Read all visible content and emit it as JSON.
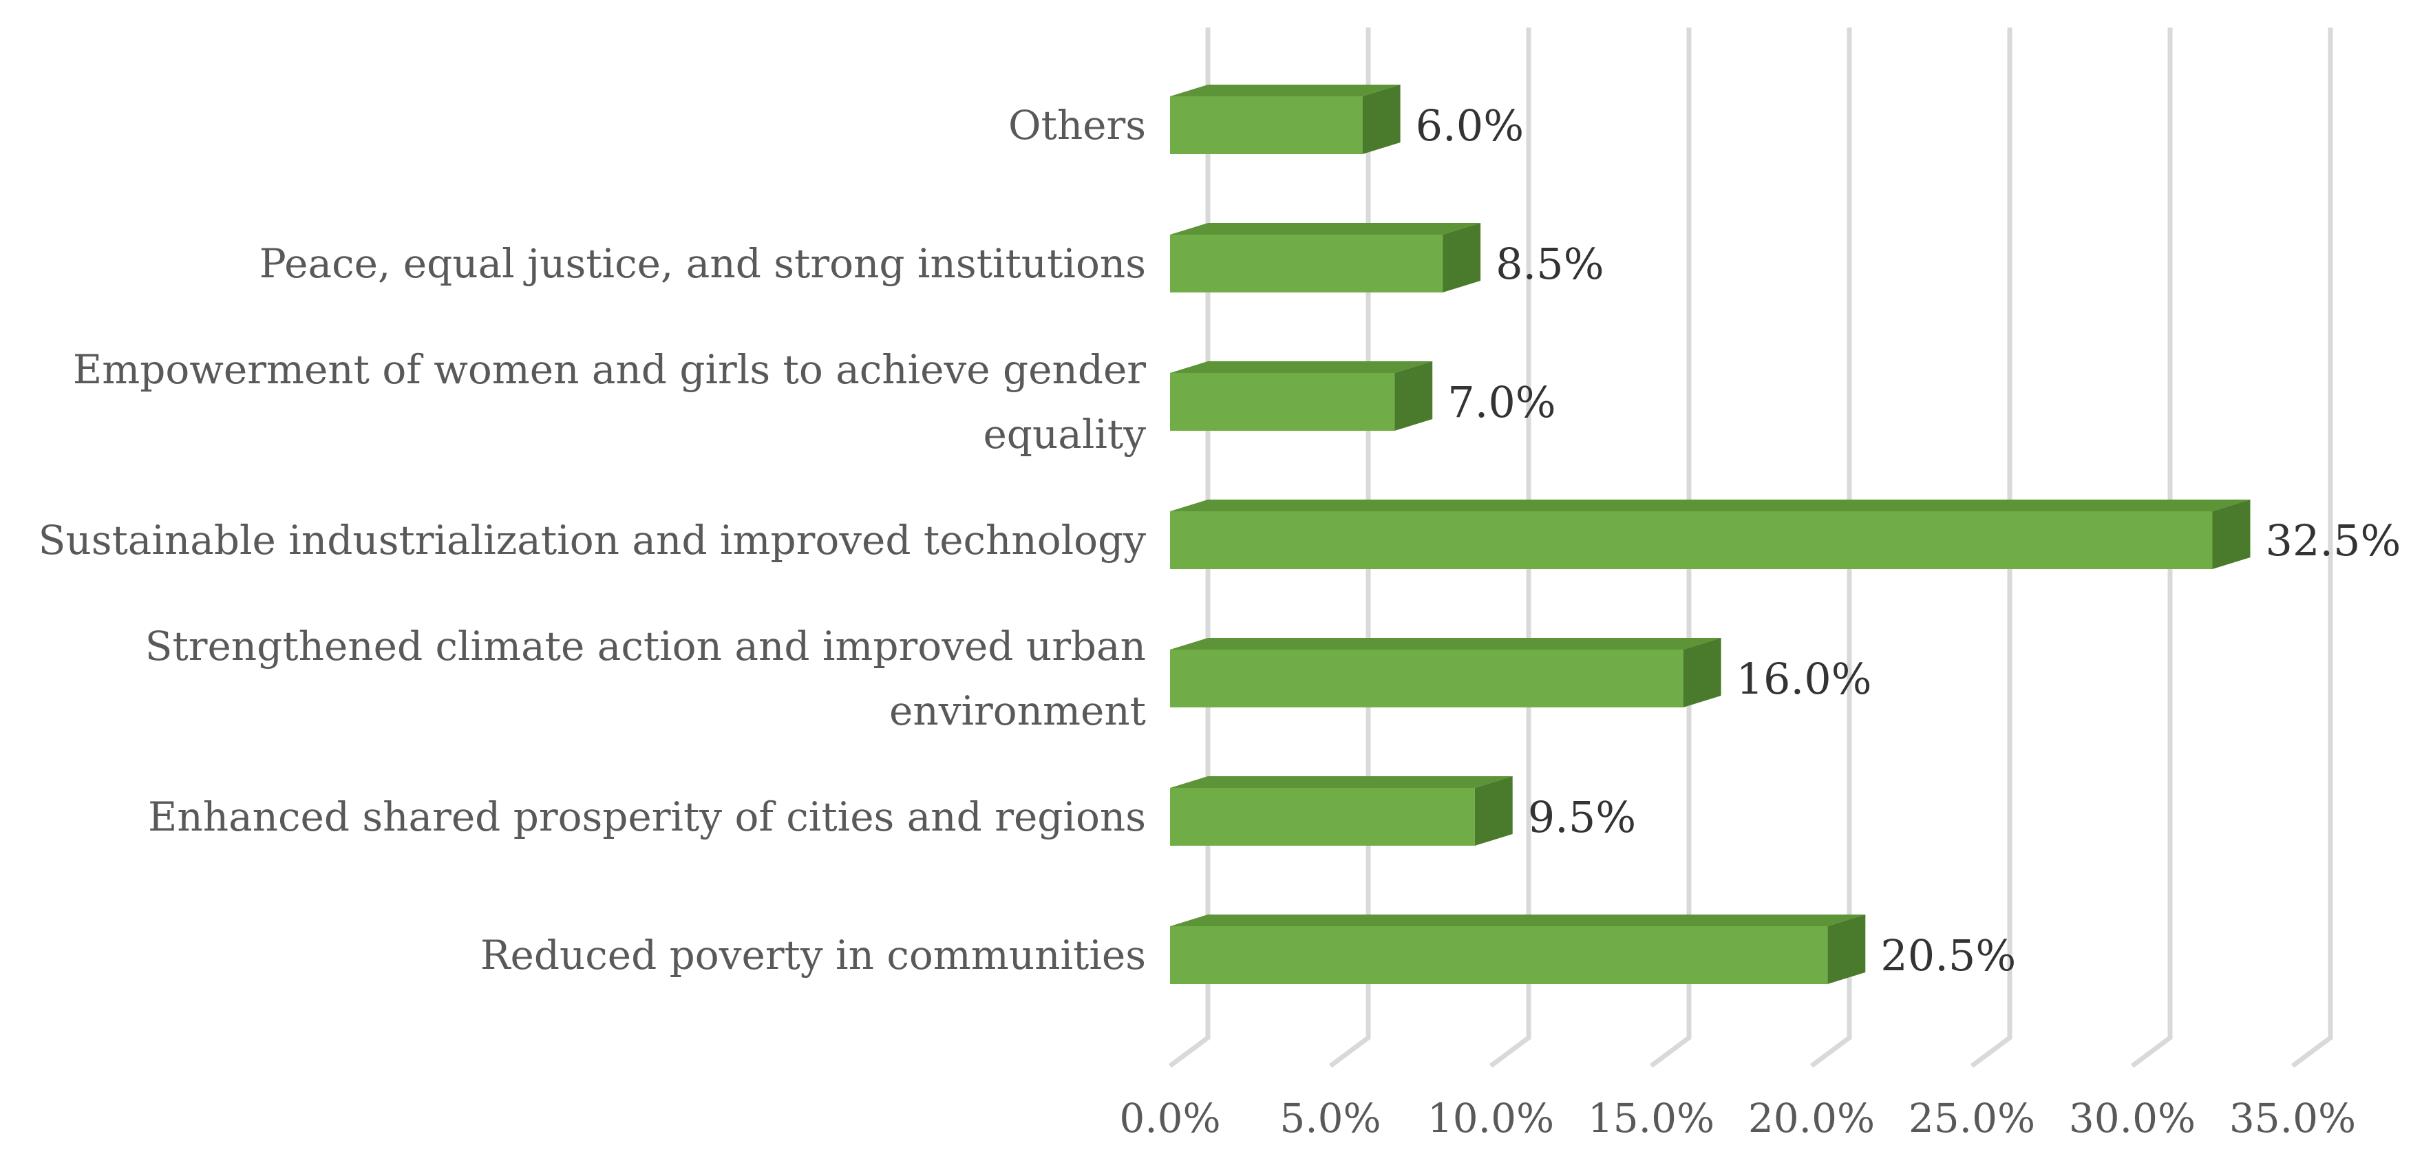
{
  "chart_data": {
    "type": "bar",
    "orientation": "horizontal",
    "style": "3d",
    "categories": [
      "Others",
      "Peace, equal justice, and strong institutions",
      "Empowerment  of women and girls to achieve gender equality",
      "Sustainable industrialization and improved technology",
      "Strengthened climate action and improved urban environment",
      "Enhanced shared prosperity of cities and regions",
      "Reduced poverty in communities"
    ],
    "category_lines": [
      [
        "Others"
      ],
      [
        "Peace, equal justice, and strong institutions"
      ],
      [
        "Empowerment  of women and girls to achieve gender",
        "equality"
      ],
      [
        "Sustainable industrialization and improved technology"
      ],
      [
        "Strengthened climate action and improved urban",
        "environment"
      ],
      [
        "Enhanced shared prosperity of cities and regions"
      ],
      [
        "Reduced poverty in communities"
      ]
    ],
    "values": [
      6.0,
      8.5,
      7.0,
      32.5,
      16.0,
      9.5,
      20.5
    ],
    "data_labels": [
      "6.0%",
      "8.5%",
      "7.0%",
      "32.5%",
      "16.0%",
      "9.5%",
      "20.5%"
    ],
    "xlim": [
      0,
      35
    ],
    "xticks": [
      0,
      5,
      10,
      15,
      20,
      25,
      30,
      35
    ],
    "xtick_labels": [
      "0.0%",
      "5.0%",
      "10.0%",
      "15.0%",
      "20.0%",
      "25.0%",
      "30.0%",
      "35.0%"
    ],
    "grid": true,
    "legend": "none",
    "colors": {
      "bar_front": "#70ad47",
      "bar_top": "#5d9438",
      "bar_side": "#4a7a2b",
      "gridline": "#d9d9d9"
    }
  }
}
